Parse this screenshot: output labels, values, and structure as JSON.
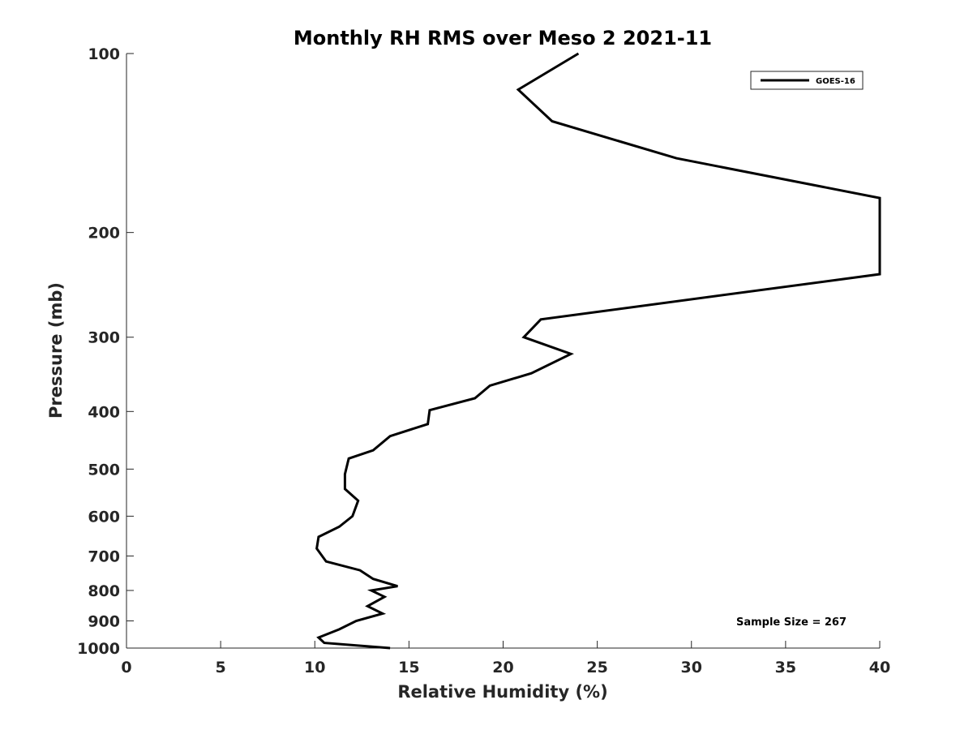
{
  "chart_data": {
    "type": "line",
    "title": "Monthly RH RMS over Meso 2  2021-11",
    "xlabel": "Relative Humidity (%)",
    "ylabel": "Pressure (mb)",
    "xlim": [
      0,
      40
    ],
    "ylim": [
      100,
      1000
    ],
    "y_scale": "log",
    "y_reversed": true,
    "grid": false,
    "legend_position": "top-right",
    "x_ticks": [
      0,
      5,
      10,
      15,
      20,
      25,
      30,
      35,
      40
    ],
    "y_ticks": [
      100,
      200,
      300,
      400,
      500,
      600,
      700,
      800,
      900,
      1000
    ],
    "annotations": [
      "Sample Size = 267"
    ],
    "series": [
      {
        "name": "GOES-16",
        "color": "#000000",
        "x": [
          24.0,
          20.8,
          22.6,
          29.2,
          40.0,
          40.0,
          22.0,
          21.1,
          23.6,
          21.5,
          19.3,
          18.5,
          16.1,
          16.0,
          14.0,
          13.1,
          11.8,
          11.6,
          11.6,
          12.3,
          12.0,
          11.3,
          10.2,
          10.1,
          10.6,
          12.4,
          13.1,
          14.4,
          13.0,
          13.7,
          12.8,
          13.6,
          12.2,
          11.3,
          10.2,
          10.5,
          14.0
        ],
        "y": [
          100,
          115,
          130,
          150,
          175,
          235,
          280,
          300,
          320,
          345,
          362,
          380,
          398,
          420,
          440,
          465,
          480,
          510,
          540,
          565,
          600,
          625,
          650,
          680,
          715,
          740,
          765,
          787,
          800,
          820,
          850,
          875,
          900,
          930,
          960,
          980,
          1000
        ]
      }
    ]
  }
}
